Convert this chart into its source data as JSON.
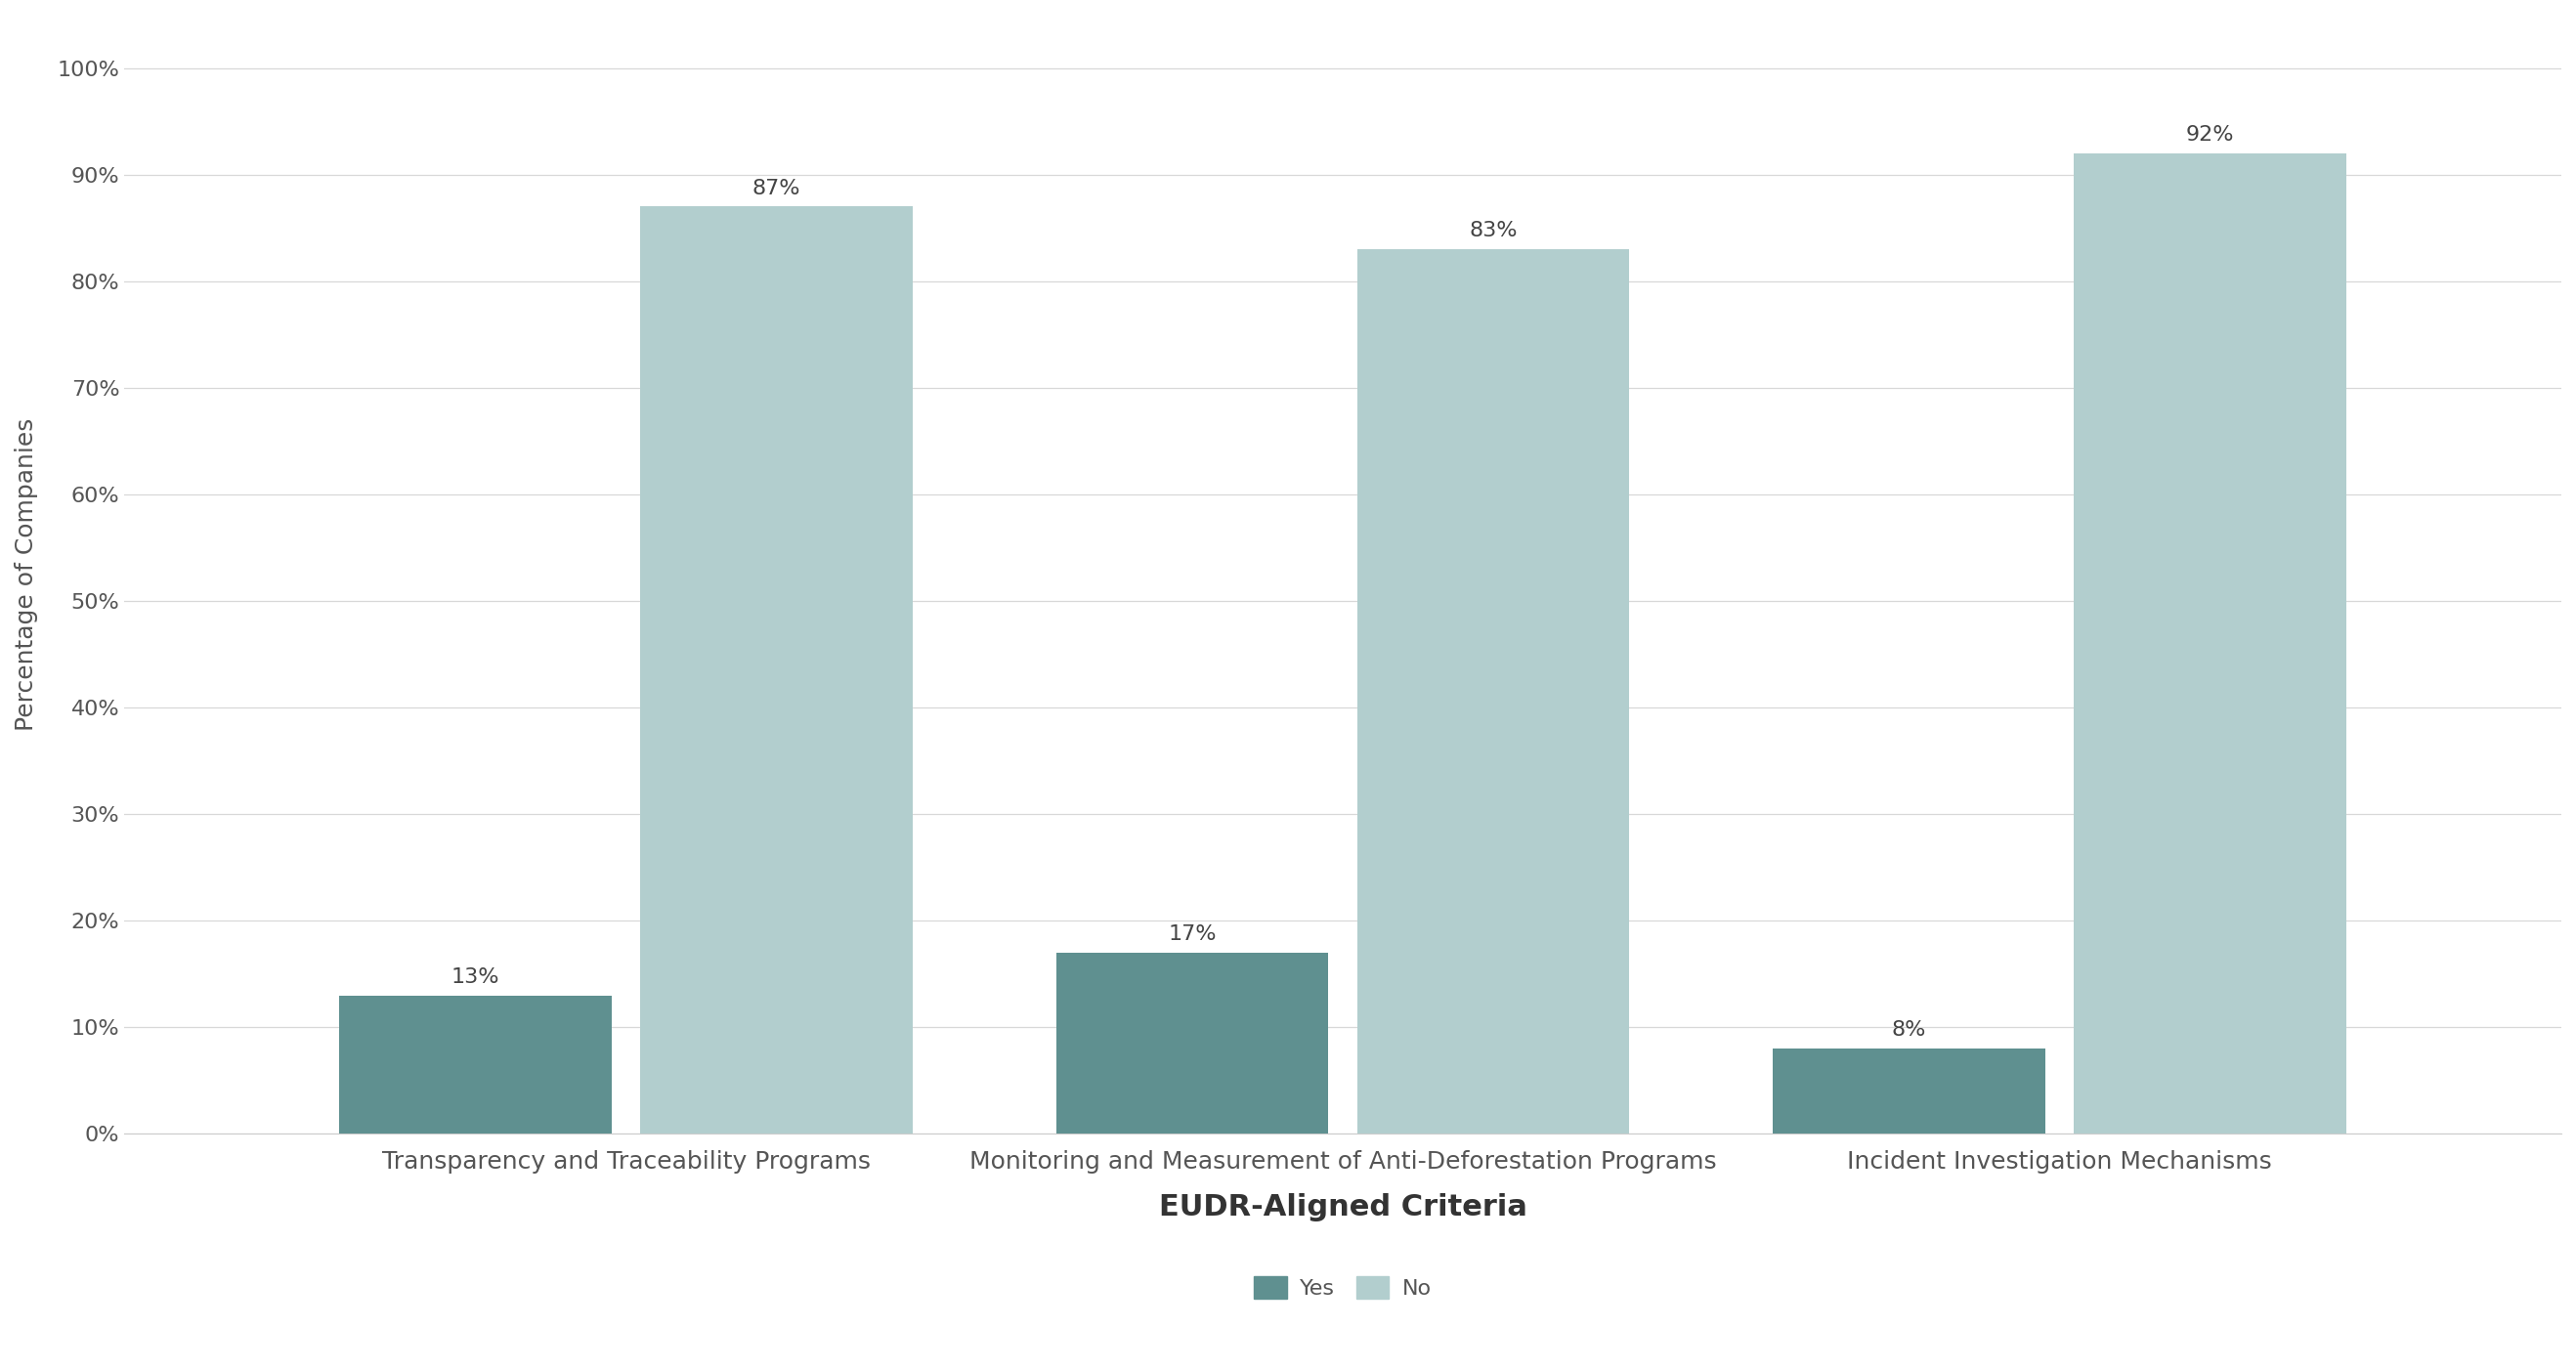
{
  "categories": [
    "Transparency and Traceability Programs",
    "Monitoring and Measurement of Anti-Deforestation Programs",
    "Incident Investigation Mechanisms"
  ],
  "yes_values": [
    13,
    17,
    8
  ],
  "no_values": [
    87,
    83,
    92
  ],
  "yes_color": "#5f9090",
  "no_color": "#b2cece",
  "bar_width": 0.38,
  "bar_gap": 0.04,
  "ylim": [
    0,
    105
  ],
  "yticks": [
    0,
    10,
    20,
    30,
    40,
    50,
    60,
    70,
    80,
    90,
    100
  ],
  "ytick_labels": [
    "0%",
    "10%",
    "20%",
    "30%",
    "40%",
    "50%",
    "60%",
    "70%",
    "80%",
    "90%",
    "100%"
  ],
  "ylabel": "Percentage of Companies",
  "xlabel": "EUDR-Aligned Criteria",
  "legend_labels": [
    "Yes",
    "No"
  ],
  "background_color": "#ffffff",
  "grid_color": "#d8d8d8",
  "label_fontsize": 18,
  "tick_fontsize": 16,
  "xlabel_fontsize": 22,
  "ylabel_fontsize": 18,
  "annotation_fontsize": 16,
  "legend_fontsize": 16
}
